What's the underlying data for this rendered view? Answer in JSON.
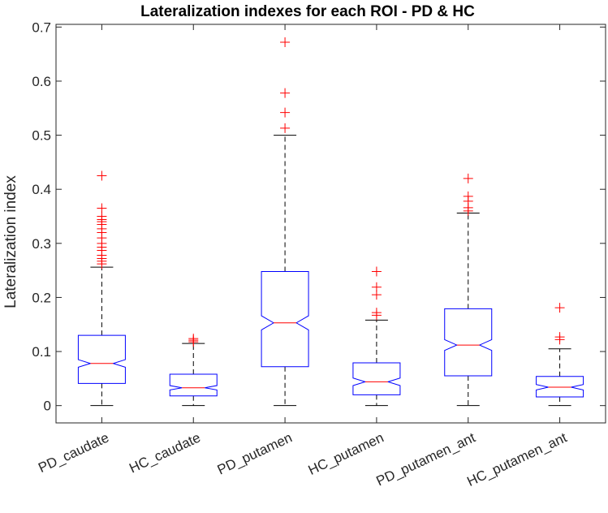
{
  "chart_data": {
    "type": "box",
    "title": "Lateralization indexes for each ROI - PD & HC",
    "xlabel": "",
    "ylabel": "Lateralization index",
    "ylim": [
      -0.032,
      0.705
    ],
    "yticks": [
      0,
      0.1,
      0.2,
      0.3,
      0.4,
      0.5,
      0.6,
      0.7
    ],
    "ytick_labels": [
      "0",
      "0.1",
      "0.2",
      "0.3",
      "0.4",
      "0.5",
      "0.6",
      "0.7"
    ],
    "notched": true,
    "categories": [
      "PD_caudate",
      "HC_caudate",
      "PD_putamen",
      "HC_putamen",
      "PD_putamen_ant",
      "HC_putamen_ant"
    ],
    "boxes": [
      {
        "name": "PD_caudate",
        "lower_whisker": 0.0,
        "q1": 0.041,
        "median": 0.078,
        "q3": 0.13,
        "upper_whisker": 0.256,
        "notch_low": 0.071,
        "notch_high": 0.085,
        "outliers": [
          0.262,
          0.267,
          0.272,
          0.278,
          0.287,
          0.293,
          0.3,
          0.31,
          0.32,
          0.327,
          0.335,
          0.34,
          0.344,
          0.35,
          0.365,
          0.425
        ]
      },
      {
        "name": "HC_caudate",
        "lower_whisker": 0.0,
        "q1": 0.018,
        "median": 0.033,
        "q3": 0.058,
        "upper_whisker": 0.115,
        "notch_low": 0.029,
        "notch_high": 0.037,
        "outliers": [
          0.118,
          0.121,
          0.124
        ]
      },
      {
        "name": "PD_putamen",
        "lower_whisker": 0.0,
        "q1": 0.072,
        "median": 0.153,
        "q3": 0.248,
        "upper_whisker": 0.5,
        "notch_low": 0.14,
        "notch_high": 0.166,
        "outliers": [
          0.513,
          0.542,
          0.578,
          0.672
        ]
      },
      {
        "name": "HC_putamen",
        "lower_whisker": 0.0,
        "q1": 0.02,
        "median": 0.044,
        "q3": 0.079,
        "upper_whisker": 0.158,
        "notch_low": 0.037,
        "notch_high": 0.051,
        "outliers": [
          0.167,
          0.172,
          0.205,
          0.219,
          0.248
        ]
      },
      {
        "name": "PD_putamen_ant",
        "lower_whisker": 0.0,
        "q1": 0.055,
        "median": 0.112,
        "q3": 0.179,
        "upper_whisker": 0.356,
        "notch_low": 0.102,
        "notch_high": 0.122,
        "outliers": [
          0.36,
          0.366,
          0.378,
          0.387,
          0.42
        ]
      },
      {
        "name": "HC_putamen_ant",
        "lower_whisker": 0.0,
        "q1": 0.016,
        "median": 0.034,
        "q3": 0.054,
        "upper_whisker": 0.105,
        "notch_low": 0.029,
        "notch_high": 0.039,
        "outliers": [
          0.122,
          0.127,
          0.181
        ]
      }
    ],
    "colors": {
      "box": "#0000ff",
      "median": "#ff0000",
      "whisker": "#000000",
      "outlier": "#ff0000",
      "axis": "#262626"
    }
  }
}
